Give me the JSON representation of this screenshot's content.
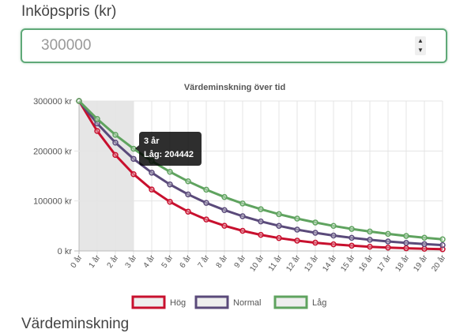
{
  "form": {
    "price_label": "Inköpspris (kr)",
    "price_value": "300000",
    "next_label": "Värdeminskning"
  },
  "chart_data": {
    "type": "line",
    "title": "Värdeminskning över tid",
    "x": [
      "0 år",
      "1 år",
      "2 år",
      "3 år",
      "4 år",
      "5 år",
      "6 år",
      "7 år",
      "8 år",
      "9 år",
      "10 år",
      "11 år",
      "12 år",
      "13 år",
      "14 år",
      "15 år",
      "16 år",
      "17 år",
      "18 år",
      "19 år",
      "20 år"
    ],
    "yticks": [
      "0 kr",
      "100000 kr",
      "200000 kr",
      "300000 kr"
    ],
    "ylim": [
      0,
      300000
    ],
    "grid": true,
    "highlight_range": [
      "0 år",
      "3 år"
    ],
    "legend_position": "bottom",
    "series": [
      {
        "name": "Hög",
        "color": "#c8102e",
        "values": [
          300000,
          240000,
          192000,
          153600,
          122880,
          98304,
          78643,
          62915,
          50332,
          40265,
          32212,
          25770,
          20616,
          16493,
          13194,
          10555,
          8444,
          6755,
          5404,
          4323,
          3459
        ]
      },
      {
        "name": "Normal",
        "color": "#5a4a7a",
        "values": [
          300000,
          255000,
          216750,
          184238,
          156602,
          133112,
          113145,
          96173,
          81747,
          69485,
          59062,
          50203,
          42673,
          36272,
          30831,
          26206,
          22275,
          18934,
          16094,
          13680,
          11628
        ]
      },
      {
        "name": "Låg",
        "color": "#5fa35f",
        "values": [
          300000,
          264000,
          232320,
          204442,
          179909,
          158320,
          139322,
          122603,
          107891,
          94944,
          83551,
          73525,
          64702,
          56938,
          50105,
          44093,
          38802,
          34145,
          30048,
          26442,
          23269
        ]
      }
    ],
    "tooltip": {
      "title": "3 år",
      "text": "Låg: 204442"
    }
  }
}
